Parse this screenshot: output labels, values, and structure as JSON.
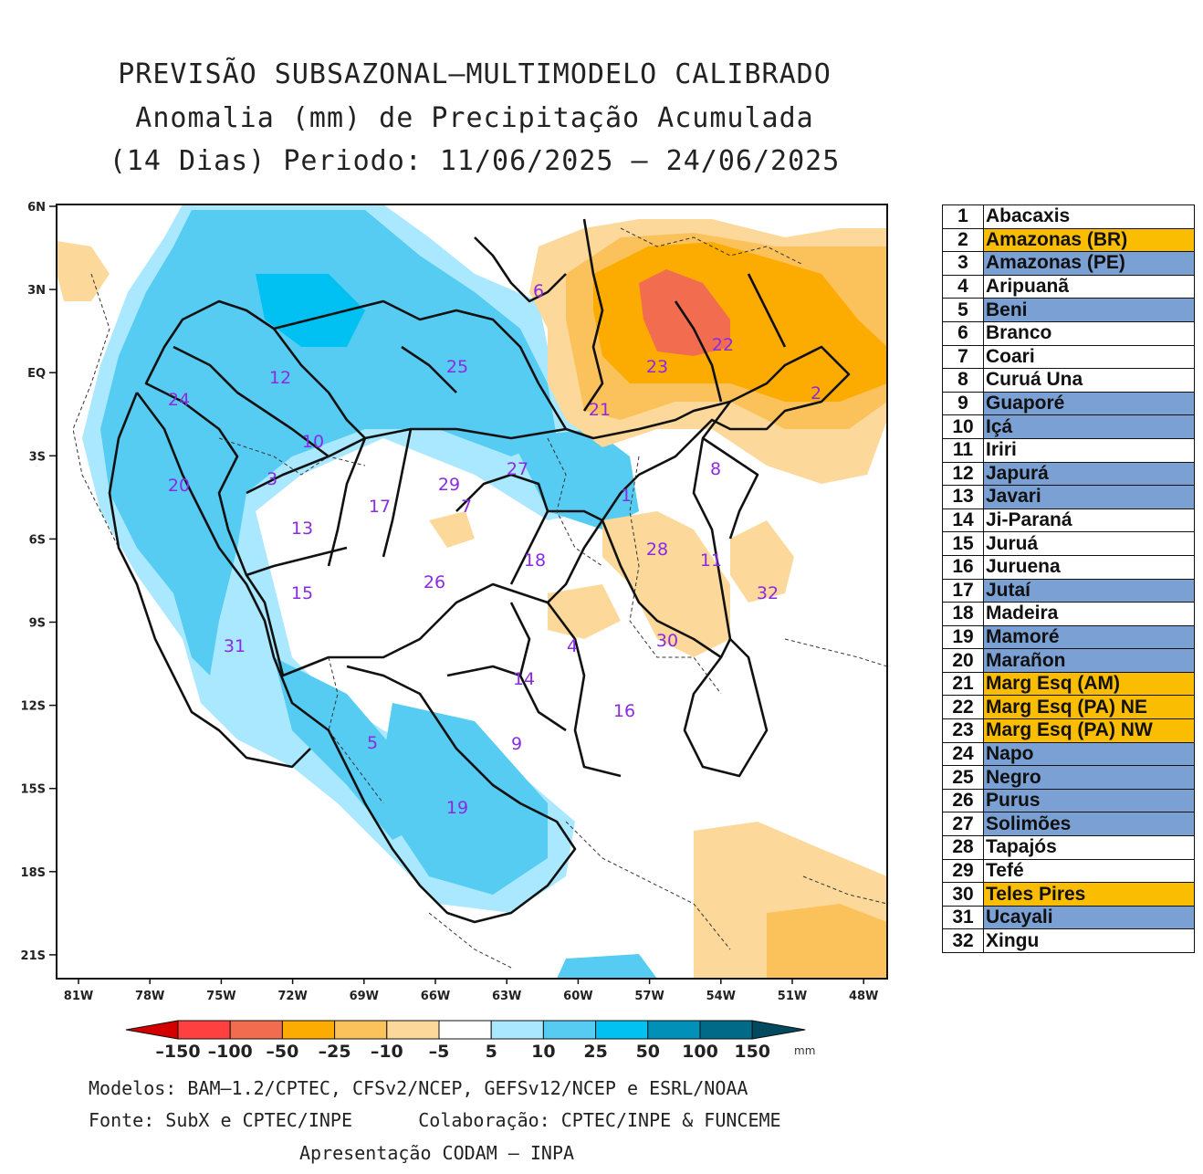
{
  "title": {
    "line1": "PREVISÃO SUBSAZONAL–MULTIMODELO CALIBRADO",
    "line2": "Anomalia (mm) de Precipitação Acumulada",
    "line3": "(14 Dias) Periodo: 11/06/2025 – 24/06/2025"
  },
  "axes": {
    "lat_labels": [
      "6N",
      "3N",
      "EQ",
      "3S",
      "6S",
      "9S",
      "12S",
      "15S",
      "18S",
      "21S"
    ],
    "lon_labels": [
      "81W",
      "78W",
      "75W",
      "72W",
      "69W",
      "66W",
      "63W",
      "60W",
      "57W",
      "54W",
      "51W",
      "48W"
    ]
  },
  "map_labels": [
    "1",
    "2",
    "3",
    "4",
    "5",
    "6",
    "7",
    "8",
    "9",
    "10",
    "11",
    "12",
    "13",
    "14",
    "15",
    "16",
    "17",
    "18",
    "19",
    "20",
    "21",
    "22",
    "23",
    "24",
    "25",
    "26",
    "27",
    "28",
    "29",
    "30",
    "31",
    "32"
  ],
  "colorbar": {
    "ticks": [
      "–150",
      "–100",
      "–50",
      "–25",
      "–10",
      "–5",
      "5",
      "10",
      "25",
      "50",
      "100",
      "150"
    ],
    "unit": "mm",
    "colors": [
      "#d40000",
      "#ff4040",
      "#f26d4f",
      "#fcab00",
      "#fbc25b",
      "#fcd99a",
      "#ffffff",
      "#a9e8ff",
      "#56ccf2",
      "#00c1f2",
      "#0090b8",
      "#006a88",
      "#004a60"
    ]
  },
  "legend": [
    {
      "num": "1",
      "name": "Abacaxis",
      "color": "#ffffff"
    },
    {
      "num": "2",
      "name": "Amazonas (BR)",
      "color": "#fbbd02"
    },
    {
      "num": "3",
      "name": "Amazonas (PE)",
      "color": "#7aa0d4"
    },
    {
      "num": "4",
      "name": "Aripuanã",
      "color": "#ffffff"
    },
    {
      "num": "5",
      "name": "Beni",
      "color": "#7aa0d4"
    },
    {
      "num": "6",
      "name": "Branco",
      "color": "#ffffff"
    },
    {
      "num": "7",
      "name": "Coari",
      "color": "#ffffff"
    },
    {
      "num": "8",
      "name": "Curuá Una",
      "color": "#ffffff"
    },
    {
      "num": "9",
      "name": "Guaporé",
      "color": "#7aa0d4"
    },
    {
      "num": "10",
      "name": "Içá",
      "color": "#7aa0d4"
    },
    {
      "num": "11",
      "name": "Iriri",
      "color": "#ffffff"
    },
    {
      "num": "12",
      "name": "Japurá",
      "color": "#7aa0d4"
    },
    {
      "num": "13",
      "name": "Javari",
      "color": "#7aa0d4"
    },
    {
      "num": "14",
      "name": "Ji-Paraná",
      "color": "#ffffff"
    },
    {
      "num": "15",
      "name": "Juruá",
      "color": "#ffffff"
    },
    {
      "num": "16",
      "name": "Juruena",
      "color": "#ffffff"
    },
    {
      "num": "17",
      "name": "Jutaí",
      "color": "#7aa0d4"
    },
    {
      "num": "18",
      "name": "Madeira",
      "color": "#ffffff"
    },
    {
      "num": "19",
      "name": "Mamoré",
      "color": "#7aa0d4"
    },
    {
      "num": "20",
      "name": "Marañon",
      "color": "#7aa0d4"
    },
    {
      "num": "21",
      "name": "Marg Esq (AM)",
      "color": "#fbbd02"
    },
    {
      "num": "22",
      "name": "Marg Esq (PA) NE",
      "color": "#fbbd02"
    },
    {
      "num": "23",
      "name": "Marg Esq (PA) NW",
      "color": "#fbbd02"
    },
    {
      "num": "24",
      "name": "Napo",
      "color": "#7aa0d4"
    },
    {
      "num": "25",
      "name": "Negro",
      "color": "#7aa0d4"
    },
    {
      "num": "26",
      "name": "Purus",
      "color": "#7aa0d4"
    },
    {
      "num": "27",
      "name": "Solimões",
      "color": "#7aa0d4"
    },
    {
      "num": "28",
      "name": "Tapajós",
      "color": "#ffffff"
    },
    {
      "num": "29",
      "name": "Tefé",
      "color": "#ffffff"
    },
    {
      "num": "30",
      "name": "Teles Pires",
      "color": "#fbbd02"
    },
    {
      "num": "31",
      "name": "Ucayali",
      "color": "#7aa0d4"
    },
    {
      "num": "32",
      "name": "Xingu",
      "color": "#ffffff"
    }
  ],
  "footer": {
    "line1": "Modelos: BAM–1.2/CPTEC, CFSv2/NCEP, GEFSv12/NCEP e ESRL/NOAA",
    "line2": "Fonte: SubX e CPTEC/INPE      Colaboração: CPTEC/INPE & FUNCEME",
    "line3": "Apresentação CODAM – INPA"
  }
}
